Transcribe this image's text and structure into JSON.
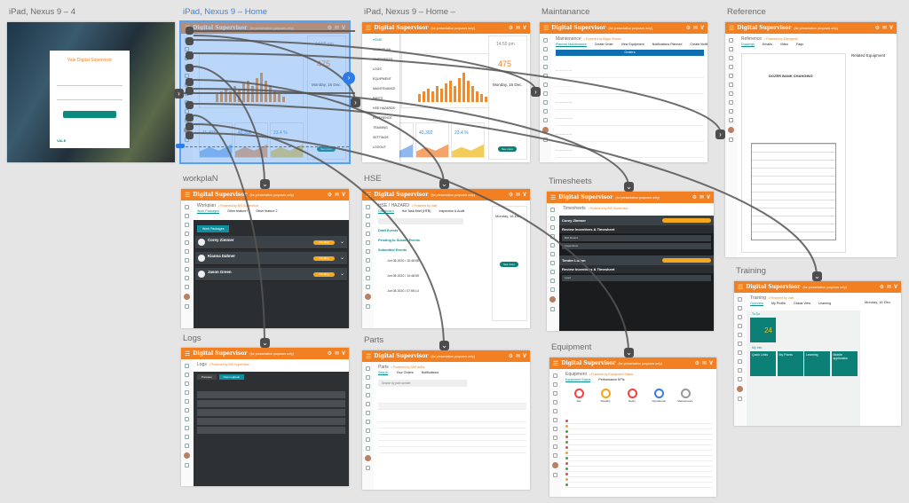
{
  "app": {
    "title": "Digital Supervisor",
    "subtitle": "(for presentation purposes only)",
    "accent": "#f28023",
    "teal": "#0c7f77"
  },
  "artboards": [
    {
      "id": "login",
      "label": "iPad, Nexus 9 – 4"
    },
    {
      "id": "home",
      "label": "iPad, Nexus 9 – Home",
      "selected": true
    },
    {
      "id": "homemenu",
      "label": "iPad, Nexus 9 – Home –"
    },
    {
      "id": "maintenance",
      "label": "Maintanance"
    },
    {
      "id": "reference",
      "label": "Reference"
    },
    {
      "id": "workplan",
      "label": "workplaN"
    },
    {
      "id": "hse",
      "label": "HSE"
    },
    {
      "id": "timesheets",
      "label": "Timesheets"
    },
    {
      "id": "training",
      "label": "Training"
    },
    {
      "id": "logs",
      "label": "Logs"
    },
    {
      "id": "parts",
      "label": "Parts"
    },
    {
      "id": "equipment",
      "label": "Equipment"
    }
  ],
  "login": {
    "title": "Vale Digital Supervisor",
    "brand": "VALE"
  },
  "home": {
    "time": "14:55 pm",
    "metric": "475",
    "date": "Monday, 16 Dec.",
    "kpis": [
      "11,403",
      "40,302",
      "23.4 %"
    ],
    "see_more": "See more",
    "bars": [
      3,
      4,
      5,
      4,
      6,
      5,
      7,
      8,
      6,
      9,
      11,
      8,
      6,
      4,
      3,
      2
    ],
    "menu": [
      "HOME",
      "WORKPLAN",
      "TIMESHEETS",
      "LOGS",
      "EQUIPMENT",
      "MAINTENANCE",
      "PARTS",
      "HSE HAZARDS",
      "REFERENCE",
      "TRAINING",
      "SETTINGS",
      "LOGOUT"
    ]
  },
  "maintenance": {
    "title": "Maintenance",
    "owner": "• Powered by Biggs Shines",
    "tabs": [
      "Planned Maintenance",
      "Create Order",
      "View Equipment",
      "Notifications Planned",
      "Create Notification"
    ],
    "banner": "Orders"
  },
  "reference": {
    "title": "Reference",
    "owner": "• Powered by Ellengenik",
    "tabs": [
      "Drawings",
      "Emails",
      "Video",
      "Faqs"
    ],
    "related": "Related Equipment",
    "doc_title": "DOZER BANK CHANGING"
  },
  "workplan": {
    "title": "Workplan",
    "owner": "• Powered by BIS Supervisor",
    "tabs": [
      "Work Packages",
      "Other feature?",
      "Other feature 2"
    ],
    "button": "Work Packages",
    "people": [
      {
        "name": "Corey Zimmer",
        "status": "Pending"
      },
      {
        "name": "Kianna Dahner",
        "status": "Pending"
      },
      {
        "name": "Jason Green",
        "status": "Pending"
      }
    ]
  },
  "hse": {
    "title": "HSE / HAZARD",
    "owner": "• Powered by Vale",
    "tabs": [
      "Dashboard",
      "Hot Task Brief (HTB)",
      "Inspection & Audit"
    ],
    "sections": [
      "Draft Events",
      "Pending to Submit Events",
      "Submitted Events"
    ],
    "events": [
      "Jun 08 2020 / 10:48:55",
      "Jun 08 2020 / 10:48:55",
      "Jun 08 2020 / 07:55:14"
    ],
    "date": "Monday, 16 Dec.",
    "see_more": "See more"
  },
  "timesheets": {
    "title": "Timesheets",
    "owner": "• Powered by BIS Supervisor",
    "groups": [
      {
        "name": "Corey Zimmer",
        "section": "Review Incentives & Timesheet",
        "rows": [
          "Bolt Round",
          "Inspections"
        ]
      },
      {
        "name": "Tender Lutton",
        "section": "Review Incentives & Timesheet",
        "rows": [
          "Load"
        ]
      }
    ]
  },
  "training": {
    "title": "Training",
    "owner": "• Powered by Vale",
    "tabs": [
      "Overview",
      "My Profile",
      "Global View",
      "Learning"
    ],
    "todo": "To Do",
    "count": "24",
    "my_info": "My Info",
    "tiles": [
      "Quick Links",
      "My Points",
      "Learning",
      "Mobile application"
    ],
    "date": "Monday, 16 Dec."
  },
  "logs": {
    "title": "Logs",
    "owner": "• Powered by BIS Supervisor",
    "tabs": [
      "Previous",
      "New Logbook"
    ]
  },
  "parts": {
    "title": "Parts",
    "owner": "• Powered by SAP Ariba",
    "tabs": [
      "Search",
      "Your Orders",
      "Notifications"
    ],
    "search_placeholder": "Search by part number"
  },
  "equipment": {
    "title": "Equipment",
    "owner": "• Powered by Equipment Status",
    "tabs": [
      "Equipment Status",
      "Performance KPIs"
    ],
    "statuses": [
      "Idle",
      "Standby",
      "Delay",
      "Operational",
      "Maintenance"
    ]
  }
}
